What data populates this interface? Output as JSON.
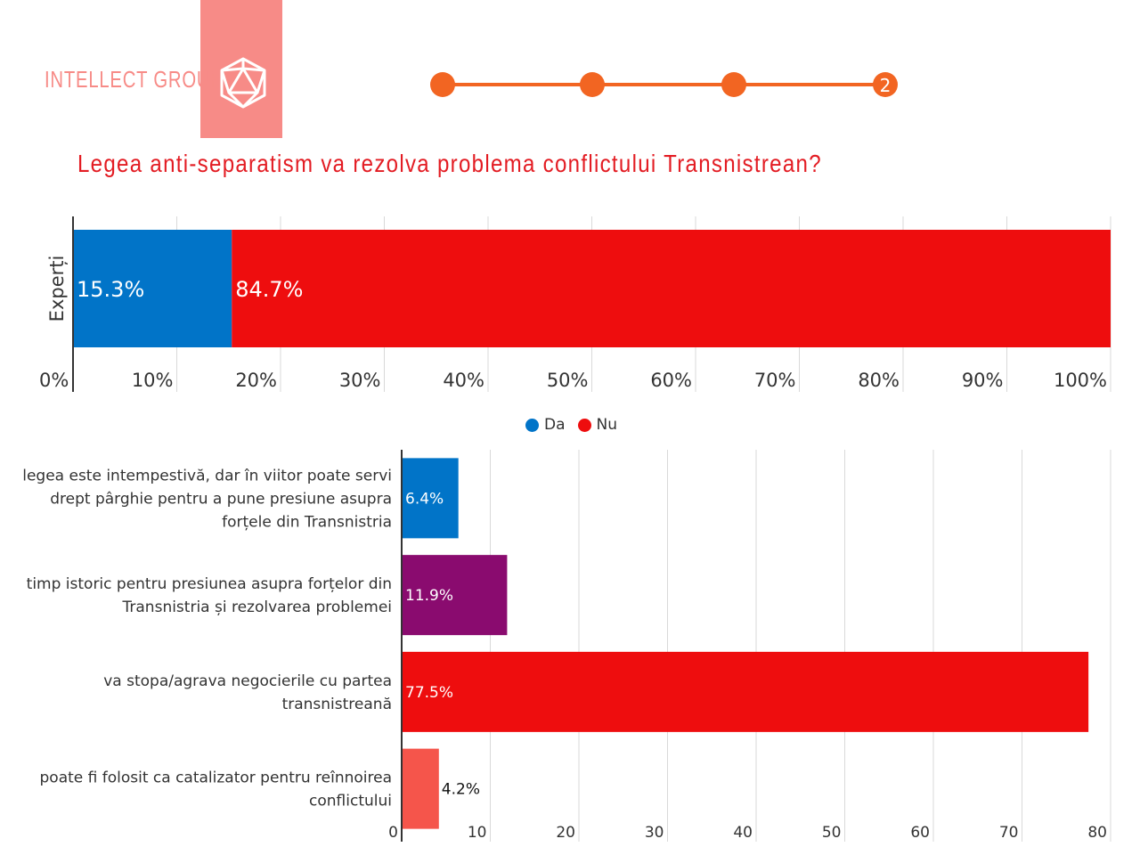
{
  "brand": {
    "name": "INTELLECT GROUP",
    "accent": "#f78b87"
  },
  "steps": {
    "current_label": "2",
    "color": "#f26522"
  },
  "page_title": "Legea anti-separatism va rezolva problema conflictului Transnistrean?",
  "legend": [
    {
      "label": "Da",
      "color": "#0174c8"
    },
    {
      "label": "Nu",
      "color": "#ee0d0e"
    }
  ],
  "chart_data": [
    {
      "type": "bar",
      "orientation": "horizontal-stacked",
      "categories": [
        "Experți"
      ],
      "series": [
        {
          "name": "Da",
          "values": [
            15.3
          ],
          "label": "15.3%",
          "color": "#0174c8"
        },
        {
          "name": "Nu",
          "values": [
            84.7
          ],
          "label": "84.7%",
          "color": "#ee0d0e"
        }
      ],
      "ylabel": "Experți",
      "xlim": [
        0,
        100
      ],
      "xticks": [
        "0%",
        "10%",
        "20%",
        "30%",
        "40%",
        "50%",
        "60%",
        "70%",
        "80%",
        "90%",
        "100%"
      ],
      "grid": true,
      "legend": "bottom"
    },
    {
      "type": "bar",
      "orientation": "horizontal",
      "categories": [
        [
          "legea este intempestivă, dar în viitor poate servi",
          "drept pârghie pentru a pune presiune asupra",
          "forțele din Transnistria"
        ],
        [
          "timp istoric pentru presiunea asupra forțelor din",
          "Transnistria și rezolvarea problemei"
        ],
        [
          "va stopa/agrava negocierile cu partea",
          "transnistreană"
        ],
        [
          "poate fi folosit ca catalizator pentru reînnoirea",
          "conflictului"
        ]
      ],
      "values": [
        6.4,
        11.9,
        77.5,
        4.2
      ],
      "labels": [
        "6.4%",
        "11.9%",
        "77.5%",
        "4.2%"
      ],
      "colors": [
        "#0174c8",
        "#8a0b6f",
        "#ee0d0e",
        "#f5554b"
      ],
      "xlim": [
        0,
        80
      ],
      "xticks": [
        "0",
        "10",
        "20",
        "30",
        "40",
        "50",
        "60",
        "70",
        "80"
      ],
      "grid": true
    }
  ]
}
